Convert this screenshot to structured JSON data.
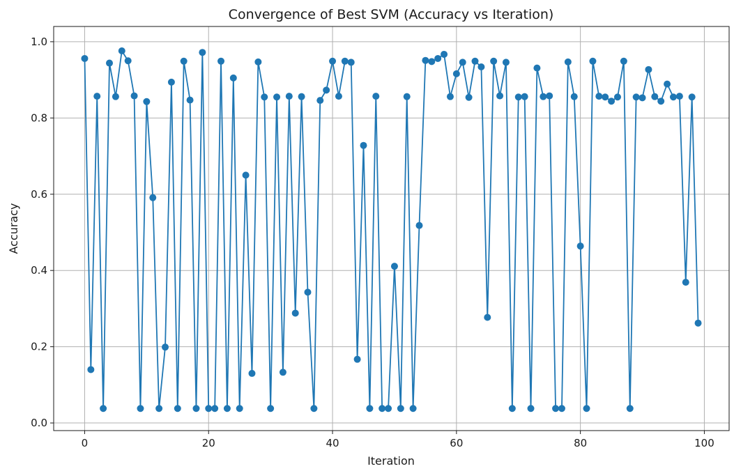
{
  "chart_data": {
    "type": "line",
    "title": "Convergence of Best SVM (Accuracy vs Iteration)",
    "xlabel": "Iteration",
    "ylabel": "Accuracy",
    "xlim": [
      -5,
      104
    ],
    "ylim": [
      -0.02,
      1.04
    ],
    "xticks": [
      0,
      20,
      40,
      60,
      80,
      100
    ],
    "yticks": [
      0.0,
      0.2,
      0.4,
      0.6,
      0.8,
      1.0
    ],
    "xtick_labels": [
      "0",
      "20",
      "40",
      "60",
      "80",
      "100"
    ],
    "ytick_labels": [
      "0.0",
      "0.2",
      "0.4",
      "0.6",
      "0.8",
      "1.0"
    ],
    "grid": true,
    "marker": "circle",
    "line_color": "#1f77b4",
    "series": [
      {
        "x": [
          0,
          1,
          2,
          3,
          4,
          5,
          6,
          7,
          8,
          9,
          10,
          11,
          12,
          13,
          14,
          15,
          16,
          17,
          18,
          19,
          20,
          21,
          22,
          23,
          24,
          25,
          26,
          27,
          28,
          29,
          30,
          31,
          32,
          33,
          34,
          35,
          36,
          37,
          38,
          39,
          40,
          41,
          42,
          43,
          44,
          45,
          46,
          47,
          48,
          49,
          50,
          51,
          52,
          53,
          54,
          55,
          56,
          57,
          58,
          59,
          60,
          61,
          62,
          63,
          64,
          65,
          66,
          67,
          68,
          69,
          70,
          71,
          72,
          73,
          74,
          75,
          76,
          77,
          78,
          79,
          80,
          81,
          82,
          83,
          84,
          85,
          86,
          87,
          88,
          89,
          90,
          91,
          92,
          93,
          94,
          95,
          96,
          97,
          98,
          99
        ],
        "y": [
          0.956,
          0.14,
          0.857,
          0.038,
          0.944,
          0.856,
          0.976,
          0.95,
          0.858,
          0.038,
          0.843,
          0.591,
          0.038,
          0.199,
          0.894,
          0.038,
          0.949,
          0.847,
          0.038,
          0.972,
          0.038,
          0.038,
          0.949,
          0.038,
          0.905,
          0.038,
          0.65,
          0.13,
          0.947,
          0.855,
          0.038,
          0.855,
          0.133,
          0.857,
          0.288,
          0.856,
          0.343,
          0.038,
          0.846,
          0.873,
          0.949,
          0.857,
          0.949,
          0.946,
          0.167,
          0.728,
          0.038,
          0.857,
          0.038,
          0.038,
          0.411,
          0.038,
          0.856,
          0.038,
          0.518,
          0.951,
          0.948,
          0.956,
          0.967,
          0.856,
          0.916,
          0.946,
          0.854,
          0.949,
          0.934,
          0.277,
          0.949,
          0.858,
          0.946,
          0.038,
          0.855,
          0.856,
          0.038,
          0.931,
          0.856,
          0.858,
          0.038,
          0.038,
          0.947,
          0.856,
          0.464,
          0.038,
          0.949,
          0.857,
          0.855,
          0.844,
          0.855,
          0.949,
          0.038,
          0.855,
          0.853,
          0.927,
          0.856,
          0.844,
          0.889,
          0.855,
          0.857,
          0.369,
          0.855,
          0.262
        ]
      }
    ]
  }
}
